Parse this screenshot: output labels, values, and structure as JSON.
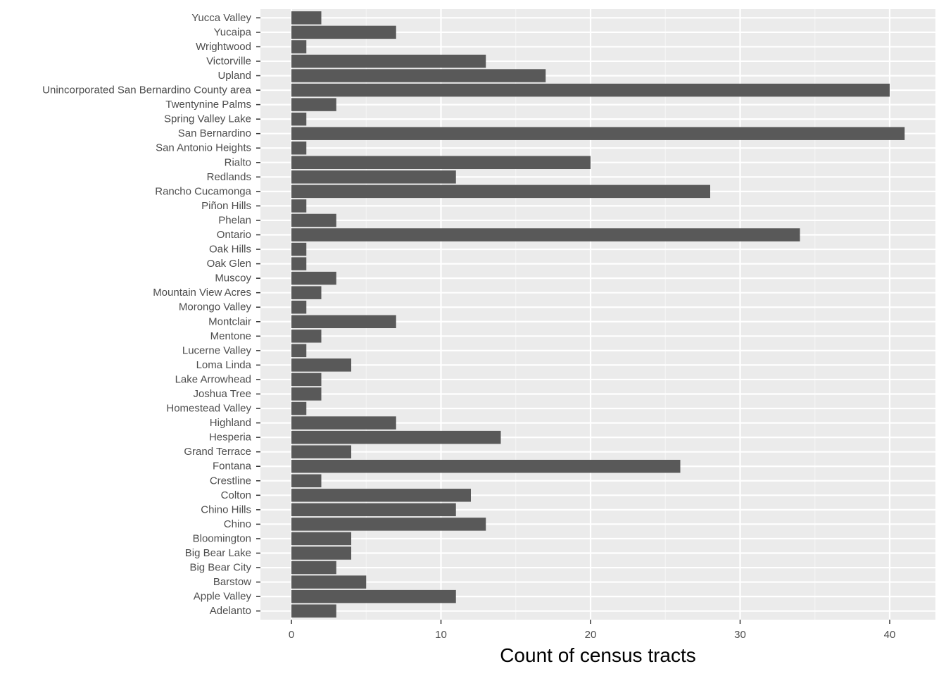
{
  "chart_data": {
    "type": "bar",
    "orientation": "horizontal",
    "title": "",
    "xlabel": "Count of census tracts",
    "ylabel": "",
    "xlim": [
      -2,
      43
    ],
    "xticks": [
      0,
      10,
      20,
      30,
      40
    ],
    "grid": true,
    "legend": "none",
    "colors": {
      "bar": "#595959",
      "panel": "#ebebeb",
      "grid_major": "#ffffff",
      "grid_minor": "#f5f5f5",
      "tick_text": "#4d4d4d",
      "tick_mark": "#333333",
      "title_text": "#000000"
    },
    "categories": [
      "Adelanto",
      "Apple Valley",
      "Barstow",
      "Big Bear City",
      "Big Bear Lake",
      "Bloomington",
      "Chino",
      "Chino Hills",
      "Colton",
      "Crestline",
      "Fontana",
      "Grand Terrace",
      "Hesperia",
      "Highland",
      "Homestead Valley",
      "Joshua Tree",
      "Lake Arrowhead",
      "Loma Linda",
      "Lucerne Valley",
      "Mentone",
      "Montclair",
      "Morongo Valley",
      "Mountain View Acres",
      "Muscoy",
      "Oak Glen",
      "Oak Hills",
      "Ontario",
      "Phelan",
      "Piñon Hills",
      "Rancho Cucamonga",
      "Redlands",
      "Rialto",
      "San Antonio Heights",
      "San Bernardino",
      "Spring Valley Lake",
      "Twentynine Palms",
      "Unincorporated San Bernardino County area",
      "Upland",
      "Victorville",
      "Wrightwood",
      "Yucaipa",
      "Yucca Valley"
    ],
    "values": [
      3,
      11,
      5,
      3,
      4,
      4,
      13,
      11,
      12,
      2,
      26,
      4,
      14,
      7,
      1,
      2,
      2,
      4,
      1,
      2,
      7,
      1,
      2,
      3,
      1,
      1,
      34,
      3,
      1,
      28,
      11,
      20,
      1,
      41,
      1,
      3,
      40,
      17,
      13,
      1,
      7,
      2
    ]
  }
}
